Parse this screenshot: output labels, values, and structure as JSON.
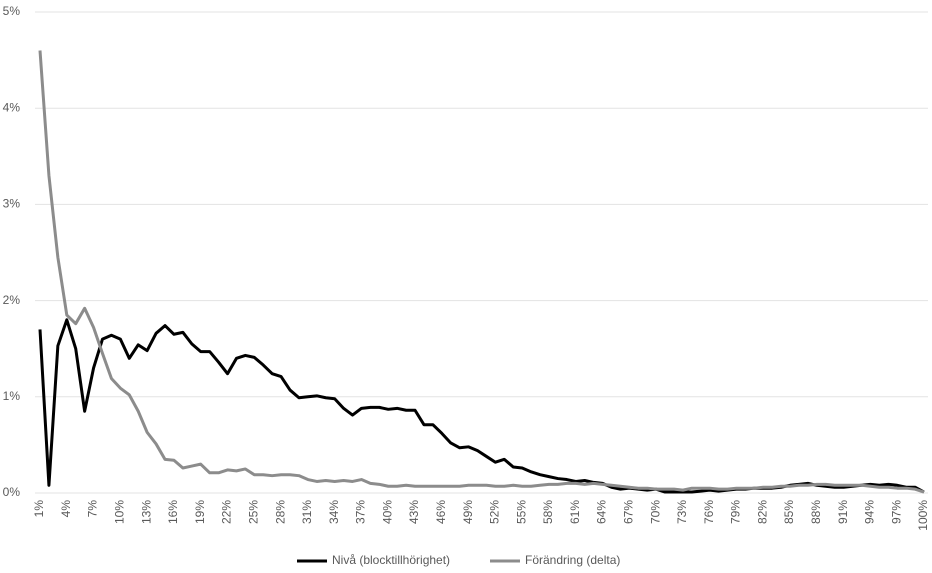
{
  "chart_data": {
    "type": "line",
    "categories": [
      "1%",
      null,
      null,
      "4%",
      null,
      null,
      "7%",
      null,
      null,
      "10%",
      null,
      null,
      "13%",
      null,
      null,
      "16%",
      null,
      null,
      "19%",
      null,
      null,
      "22%",
      null,
      null,
      "25%",
      null,
      null,
      "28%",
      null,
      null,
      "31%",
      null,
      null,
      "34%",
      null,
      null,
      "37%",
      null,
      null,
      "40%",
      null,
      null,
      "43%",
      null,
      null,
      "46%",
      null,
      null,
      "49%",
      null,
      null,
      "52%",
      null,
      null,
      "55%",
      null,
      null,
      "58%",
      null,
      null,
      "61%",
      null,
      null,
      "64%",
      null,
      null,
      "67%",
      null,
      null,
      "70%",
      null,
      null,
      "73%",
      null,
      null,
      "76%",
      null,
      null,
      "79%",
      null,
      null,
      "82%",
      null,
      null,
      "85%",
      null,
      null,
      "88%",
      null,
      null,
      "91%",
      null,
      null,
      "94%",
      null,
      null,
      "97%",
      null,
      null,
      "100%"
    ],
    "series": [
      {
        "name": "Nivå (blocktillhörighet)",
        "color": "#000000",
        "values": [
          1.7,
          0.08,
          1.53,
          1.8,
          1.5,
          0.85,
          1.3,
          1.6,
          1.64,
          1.6,
          1.4,
          1.54,
          1.48,
          1.66,
          1.74,
          1.65,
          1.67,
          1.55,
          1.47,
          1.47,
          1.36,
          1.24,
          1.4,
          1.43,
          1.41,
          1.33,
          1.24,
          1.21,
          1.07,
          0.99,
          1.0,
          1.01,
          0.99,
          0.98,
          0.88,
          0.81,
          0.88,
          0.89,
          0.89,
          0.87,
          0.88,
          0.86,
          0.86,
          0.71,
          0.71,
          0.62,
          0.52,
          0.47,
          0.48,
          0.44,
          0.38,
          0.32,
          0.35,
          0.27,
          0.26,
          0.22,
          0.19,
          0.17,
          0.15,
          0.14,
          0.12,
          0.13,
          0.11,
          0.1,
          0.06,
          0.04,
          0.05,
          0.04,
          0.03,
          0.04,
          0.01,
          0.01,
          0.01,
          0.01,
          0.02,
          0.03,
          0.02,
          0.03,
          0.04,
          0.04,
          0.05,
          0.05,
          0.05,
          0.06,
          0.08,
          0.09,
          0.1,
          0.08,
          0.07,
          0.06,
          0.06,
          0.07,
          0.08,
          0.09,
          0.08,
          0.09,
          0.08,
          0.06,
          0.06,
          0.01
        ]
      },
      {
        "name": "Förändring (delta)",
        "color": "#8c8c8c",
        "values": [
          4.6,
          3.3,
          2.45,
          1.85,
          1.76,
          1.92,
          1.72,
          1.45,
          1.19,
          1.09,
          1.02,
          0.85,
          0.63,
          0.51,
          0.35,
          0.34,
          0.26,
          0.28,
          0.3,
          0.21,
          0.21,
          0.24,
          0.23,
          0.25,
          0.19,
          0.19,
          0.18,
          0.19,
          0.19,
          0.18,
          0.14,
          0.12,
          0.13,
          0.12,
          0.13,
          0.12,
          0.14,
          0.1,
          0.09,
          0.07,
          0.07,
          0.08,
          0.07,
          0.07,
          0.07,
          0.07,
          0.07,
          0.07,
          0.08,
          0.08,
          0.08,
          0.07,
          0.07,
          0.08,
          0.07,
          0.07,
          0.08,
          0.09,
          0.09,
          0.1,
          0.1,
          0.09,
          0.1,
          0.09,
          0.08,
          0.07,
          0.06,
          0.05,
          0.05,
          0.04,
          0.04,
          0.04,
          0.03,
          0.05,
          0.05,
          0.05,
          0.04,
          0.04,
          0.05,
          0.05,
          0.05,
          0.06,
          0.06,
          0.07,
          0.07,
          0.08,
          0.08,
          0.09,
          0.09,
          0.08,
          0.08,
          0.08,
          0.08,
          0.07,
          0.06,
          0.06,
          0.05,
          0.05,
          0.04,
          0.01
        ]
      }
    ],
    "ylim": [
      0,
      5
    ],
    "yticks": [
      {
        "value": 0,
        "label": "0%"
      },
      {
        "value": 1,
        "label": "1%"
      },
      {
        "value": 2,
        "label": "2%"
      },
      {
        "value": 3,
        "label": "3%"
      },
      {
        "value": 4,
        "label": "4%"
      },
      {
        "value": 5,
        "label": "5%"
      }
    ],
    "grid": true,
    "legend": "bottom"
  }
}
